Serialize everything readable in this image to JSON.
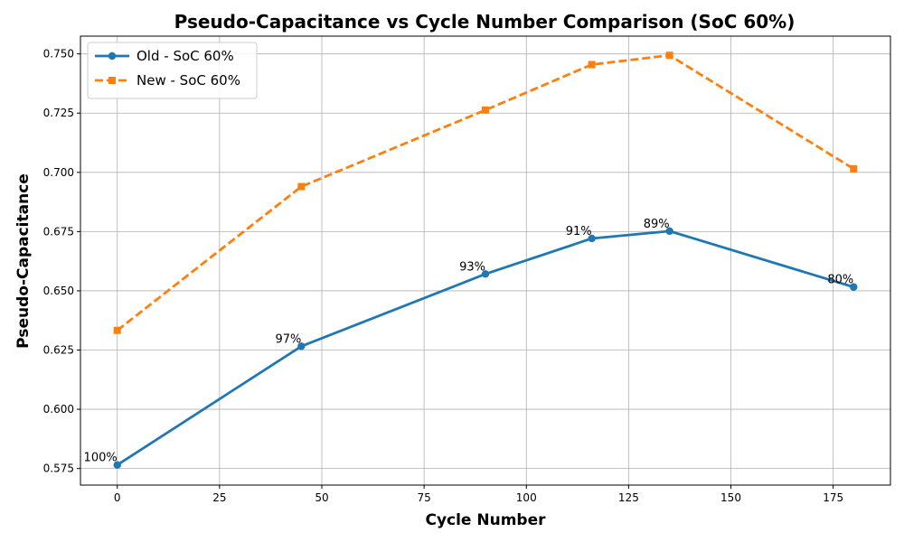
{
  "chart_data": {
    "type": "line",
    "title": "Pseudo-Capacitance vs Cycle Number Comparison (SoC 60%)",
    "xlabel": "Cycle Number",
    "ylabel": "Pseudo-Capacitance",
    "xlim": [
      -9,
      189
    ],
    "ylim": [
      0.568,
      0.7575
    ],
    "xticks": [
      0,
      25,
      50,
      75,
      100,
      125,
      150,
      175
    ],
    "yticks": [
      0.575,
      0.6,
      0.625,
      0.65,
      0.675,
      0.7,
      0.725,
      0.75
    ],
    "xtick_labels": [
      "0",
      "25",
      "50",
      "75",
      "100",
      "125",
      "150",
      "175"
    ],
    "ytick_labels": [
      "0.575",
      "0.600",
      "0.625",
      "0.650",
      "0.675",
      "0.700",
      "0.725",
      "0.750"
    ],
    "grid": true,
    "legend_position": "top-left",
    "series": [
      {
        "name": "Old - SoC 60%",
        "color": "#1f77b4",
        "linestyle": "solid",
        "marker": "circle",
        "x": [
          0,
          45,
          90,
          116,
          135,
          180
        ],
        "y": [
          0.5765,
          0.6266,
          0.6571,
          0.6721,
          0.6752,
          0.6516
        ],
        "annotations": [
          "100%",
          "97%",
          "93%",
          "91%",
          "89%",
          "80%"
        ]
      },
      {
        "name": "New - SoC 60%",
        "color": "#ff7f0e",
        "linestyle": "dashed",
        "marker": "square",
        "x": [
          0,
          45,
          90,
          116,
          135,
          180
        ],
        "y": [
          0.6333,
          0.694,
          0.7263,
          0.7455,
          0.7494,
          0.7015
        ]
      }
    ]
  }
}
